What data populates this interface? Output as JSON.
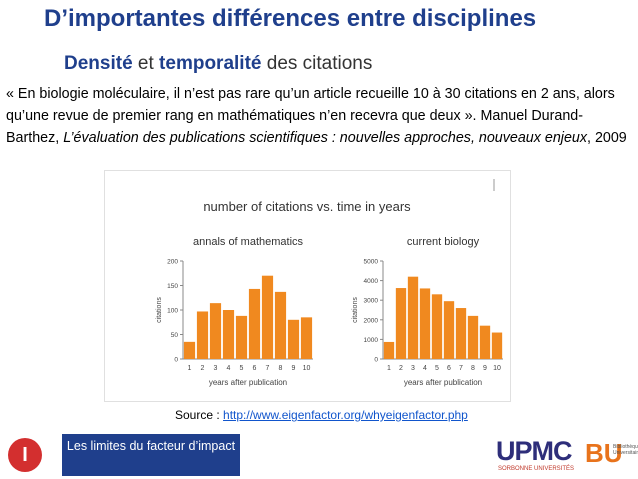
{
  "slide": {
    "title": "D’importantes différences entre disciplines",
    "subtitle_part1": "Densité",
    "subtitle_and": " et ",
    "subtitle_part2": "temporalité",
    "subtitle_rest": " des citations",
    "quote_main": "« En biologie moléculaire, il n’est pas rare qu’un article recueille 10 à 30 citations en 2 ans, alors qu’une revue de premier rang en mathématiques n’en recevra que deux ». Manuel Durand-Barthez, ",
    "quote_title": "L’évaluation des publications scientifiques : nouvelles approches, nouveaux enjeux",
    "quote_year": ", 2009",
    "source_label": "Source : ",
    "source_url": "http://www.eigenfactor.org/whyeigenfactor.php",
    "footer_label": "Les limites du facteur d’impact",
    "section_number": "I",
    "logo_upmc": "UPMC",
    "logo_upmc_sub": "SORBONNE UNIVERSITÉS",
    "logo_bu": "BU",
    "logo_bu_sub": "Bibliothèque Universitaire"
  },
  "chart_data": {
    "title": "number of citations vs. time in years",
    "bar_color": "#f0891f",
    "charts": [
      {
        "type": "bar",
        "title": "annals of mathematics",
        "xlabel": "years after publication",
        "ylabel": "citations",
        "categories": [
          "1",
          "2",
          "3",
          "4",
          "5",
          "6",
          "7",
          "8",
          "9",
          "10"
        ],
        "values": [
          35,
          97,
          114,
          100,
          88,
          143,
          170,
          137,
          80,
          85
        ],
        "ylim": [
          0,
          200
        ],
        "yticks": [
          0,
          50,
          100,
          150,
          200
        ]
      },
      {
        "type": "bar",
        "title": "current biology",
        "xlabel": "years after publication",
        "ylabel": "citations",
        "categories": [
          "1",
          "2",
          "3",
          "4",
          "5",
          "6",
          "7",
          "8",
          "9",
          "10"
        ],
        "values": [
          870,
          3620,
          4200,
          3600,
          3300,
          2950,
          2600,
          2200,
          1700,
          1350
        ],
        "ylim": [
          0,
          5000
        ],
        "yticks": [
          0,
          1000,
          2000,
          3000,
          4000,
          5000
        ]
      }
    ]
  }
}
